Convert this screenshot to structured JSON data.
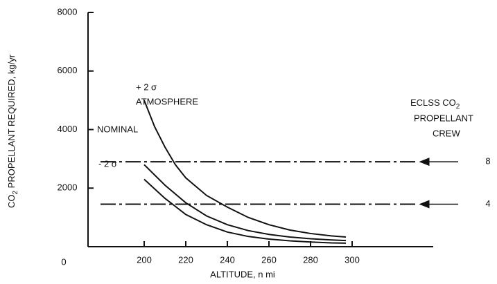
{
  "chart_data": {
    "type": "line",
    "y_label": [
      "CO",
      "2",
      " PROPELLANT REQUIRED, kg/yr"
    ],
    "x_label": "ALTITUDE, n mi",
    "origin_label": "0",
    "xlim": [
      173,
      339
    ],
    "ylim": [
      0,
      8000
    ],
    "xticks": [
      200,
      220,
      240,
      260,
      280,
      300
    ],
    "yticks": [
      2000,
      4000,
      6000,
      8000
    ],
    "legend_title": [
      "ECLSS CO",
      "2",
      "PROPELLANT",
      "CREW"
    ],
    "annotations": [
      "ATMOSPHERE"
    ],
    "series": [
      {
        "name": "+ 2 σ",
        "color": "#111",
        "dash": false,
        "x": [
          200,
          205,
          210,
          215,
          220,
          230,
          240,
          250,
          260,
          270,
          280,
          290,
          297
        ],
        "values": [
          5000,
          4100,
          3400,
          2800,
          2350,
          1750,
          1350,
          1000,
          750,
          570,
          450,
          370,
          330
        ]
      },
      {
        "name": "NOMINAL",
        "color": "#111",
        "dash": false,
        "x": [
          200,
          210,
          220,
          230,
          240,
          250,
          260,
          270,
          280,
          290,
          297
        ],
        "values": [
          2800,
          2100,
          1500,
          1050,
          750,
          550,
          420,
          330,
          270,
          230,
          210
        ]
      },
      {
        "name": "- 2 σ",
        "color": "#111",
        "dash": false,
        "x": [
          200,
          210,
          220,
          230,
          240,
          250,
          260,
          270,
          280,
          290,
          297
        ],
        "values": [
          2300,
          1650,
          1100,
          750,
          500,
          350,
          260,
          200,
          160,
          130,
          120
        ]
      },
      {
        "name": "8",
        "color": "#111",
        "dash": true,
        "x": [
          179,
          331
        ],
        "values": [
          2900,
          2900
        ]
      },
      {
        "name": "4",
        "color": "#111",
        "dash": true,
        "x": [
          179,
          331
        ],
        "values": [
          1450,
          1450
        ]
      }
    ]
  }
}
